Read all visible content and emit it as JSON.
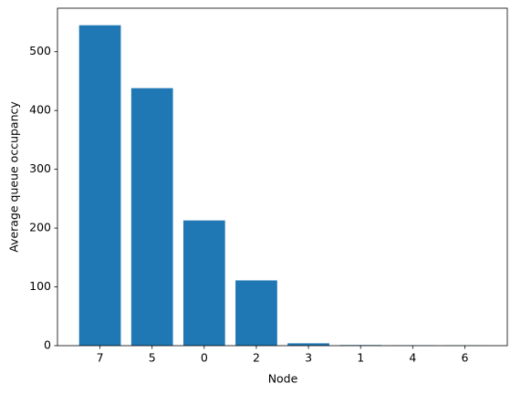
{
  "chart_data": {
    "type": "bar",
    "x_label": "Node",
    "y_label": "Average queue occupancy",
    "categories": [
      "7",
      "5",
      "0",
      "2",
      "3",
      "1",
      "4",
      "6"
    ],
    "values": [
      545,
      438,
      213,
      111,
      4,
      1,
      0.5,
      0.3
    ],
    "color": "#1f77b4",
    "ylim": [
      0,
      574
    ],
    "yticks": [
      0,
      100,
      200,
      300,
      400,
      500
    ]
  }
}
